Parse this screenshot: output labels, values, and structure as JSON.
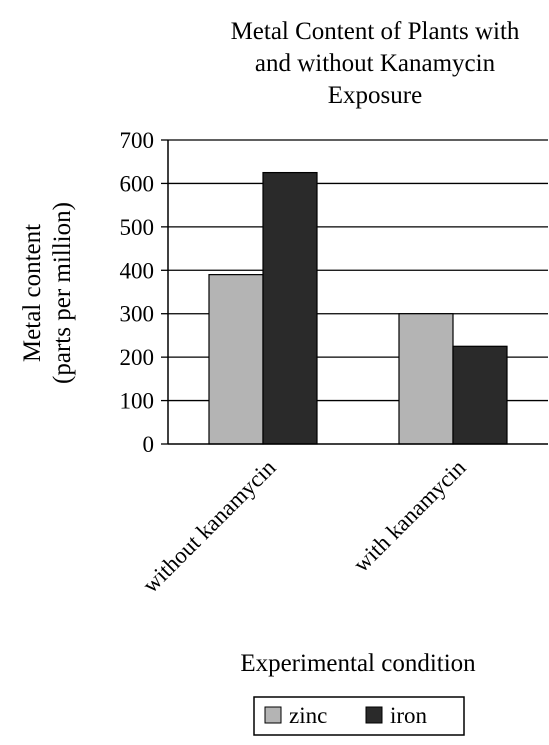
{
  "chart_data": {
    "type": "bar",
    "title": "Metal Content of Plants with and without Kanamycin Exposure",
    "title_lines": [
      "Metal Content of Plants with",
      "and without Kanamycin",
      "Exposure"
    ],
    "xlabel": "Experimental condition",
    "ylabel": "Metal content (parts per million)",
    "ylabel_lines": [
      "Metal content",
      "(parts per million)"
    ],
    "categories": [
      "without kanamycin",
      "with kanamycin"
    ],
    "series": [
      {
        "name": "zinc",
        "values": [
          390,
          300
        ]
      },
      {
        "name": "iron",
        "values": [
          625,
          225
        ]
      }
    ],
    "ylim": [
      0,
      700
    ],
    "yticks": [
      "0",
      "100",
      "200",
      "300",
      "400",
      "500",
      "600",
      "700"
    ],
    "grid": true,
    "legend_position": "bottom-center"
  },
  "colors": {
    "zinc": "#b4b4b4",
    "iron": "#2a2a2a"
  }
}
